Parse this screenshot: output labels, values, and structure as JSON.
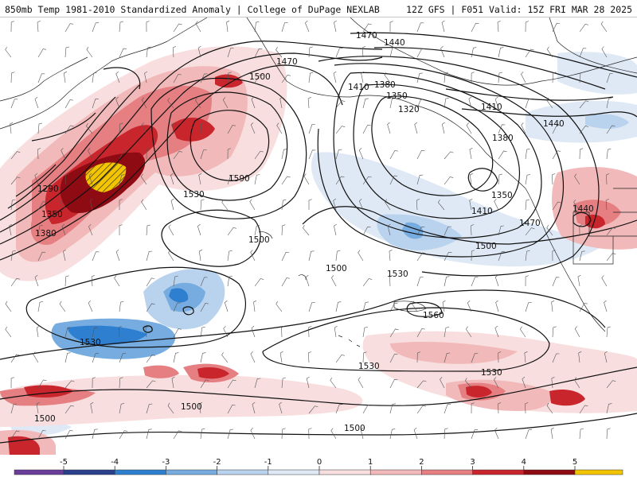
{
  "header": {
    "left_title": "850mb Temp 1981-2010 Standardized Anomaly | College of DuPage NEXLAB",
    "right_title": "12Z GFS | F051 Valid: 15Z FRI MAR 28 2025"
  },
  "contour_labels": [
    "1470",
    "1440",
    "1500",
    "1470",
    "1410",
    "1380",
    "1350",
    "1320",
    "1410",
    "1440",
    "1290",
    "1590",
    "1380",
    "1350",
    "1530",
    "1380",
    "1500",
    "1350",
    "1410",
    "1440",
    "1470",
    "1500",
    "1500",
    "1530",
    "1560",
    "1530",
    "1530",
    "1530",
    "1500",
    "1500",
    "1500"
  ],
  "colorbar": {
    "ticks": [
      "-5",
      "-4",
      "-3",
      "-2",
      "-1",
      "0",
      "1",
      "2",
      "3",
      "4",
      "5"
    ],
    "colors": {
      "deep_purple": "#6a3d9a",
      "navy": "#2b3f8c",
      "blue": "#2f7fd0",
      "mid_blue": "#76acdf",
      "light_blue": "#b9d3ee",
      "pale_blue": "#dfe9f6",
      "pale_red": "#f8dede",
      "light_red": "#f1b9b9",
      "mid_red": "#e57f82",
      "red": "#c9252c",
      "dark_red": "#8e0b13",
      "yellow": "#f3c400"
    }
  }
}
